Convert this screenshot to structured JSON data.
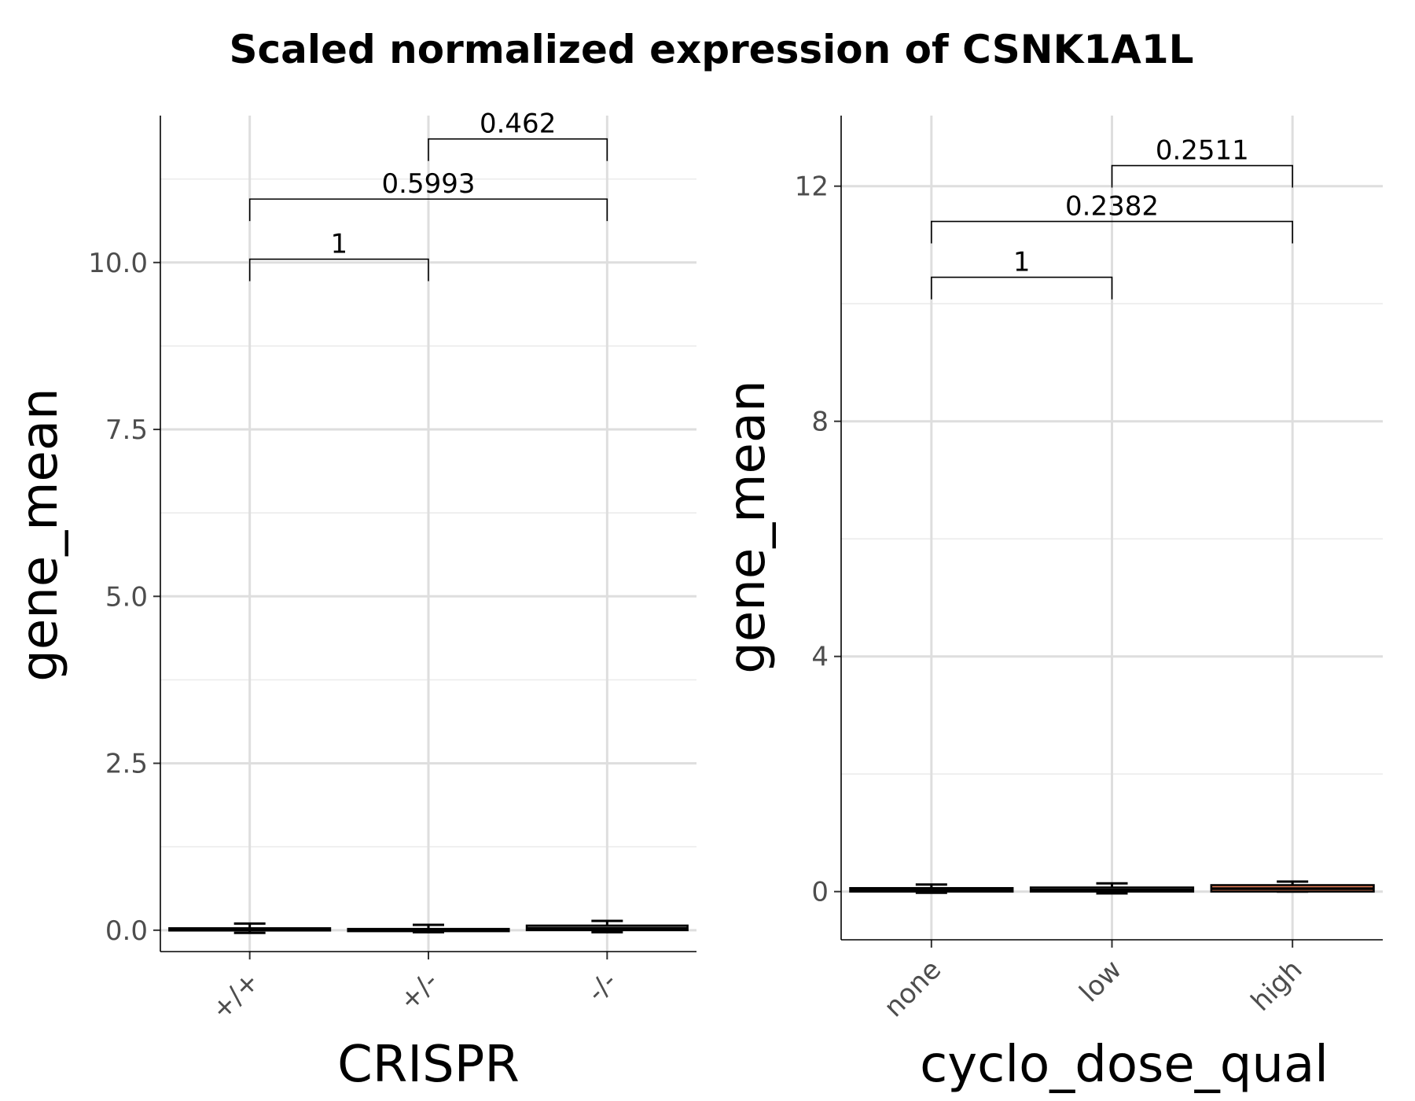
{
  "title": "Scaled normalized expression of CSNK1A1L",
  "chart_data": [
    {
      "type": "box",
      "xlabel": "CRISPR",
      "ylabel": "gene_mean",
      "categories": [
        "+/+",
        "+/-",
        "-/-"
      ],
      "ylim": [
        -0.32,
        12.2
      ],
      "yticks": [
        0,
        2.5,
        5,
        7.5,
        10
      ],
      "yticklabels": [
        "0.0",
        "2.5",
        "5.0",
        "7.5",
        "10.0"
      ],
      "grid": true,
      "boxes": [
        {
          "category": "+/+",
          "lower_whisker": -0.04,
          "q1": 0.0,
          "median": 0.01,
          "q3": 0.03,
          "upper_whisker": 0.1,
          "fill": "#ffffff"
        },
        {
          "category": "+/-",
          "lower_whisker": -0.03,
          "q1": 0.0,
          "median": 0.01,
          "q3": 0.02,
          "upper_whisker": 0.08,
          "fill": "#ffffff"
        },
        {
          "category": "-/-",
          "lower_whisker": -0.03,
          "q1": 0.0,
          "median": 0.03,
          "q3": 0.07,
          "upper_whisker": 0.14,
          "fill": "#ffffff"
        }
      ],
      "comparisons": [
        {
          "groups": [
            "+/+",
            "+/-"
          ],
          "p_value": "1",
          "y": 10.05
        },
        {
          "groups": [
            "+/+",
            "-/-"
          ],
          "p_value": "0.5993",
          "y": 10.95
        },
        {
          "groups": [
            "+/-",
            "-/-"
          ],
          "p_value": "0.462",
          "y": 11.85
        }
      ]
    },
    {
      "type": "box",
      "xlabel": "cyclo_dose_qual",
      "ylabel": "gene_mean",
      "categories": [
        "none",
        "low",
        "high"
      ],
      "ylim": [
        -0.82,
        13.2
      ],
      "yticks": [
        0,
        4,
        8,
        12
      ],
      "yticklabels": [
        "0",
        "4",
        "8",
        "12"
      ],
      "grid": true,
      "boxes": [
        {
          "category": "none",
          "lower_whisker": -0.02,
          "q1": 0.0,
          "median": 0.02,
          "q3": 0.06,
          "upper_whisker": 0.12,
          "fill": "#ffffff"
        },
        {
          "category": "low",
          "lower_whisker": -0.03,
          "q1": 0.0,
          "median": 0.03,
          "q3": 0.07,
          "upper_whisker": 0.14,
          "fill": "#ffffff"
        },
        {
          "category": "high",
          "lower_whisker": 0.0,
          "q1": 0.0,
          "median": 0.05,
          "q3": 0.11,
          "upper_whisker": 0.17,
          "fill": "#e8805a"
        }
      ],
      "comparisons": [
        {
          "groups": [
            "none",
            "low"
          ],
          "p_value": "1",
          "y": 10.45
        },
        {
          "groups": [
            "none",
            "high"
          ],
          "p_value": "0.2382",
          "y": 11.4
        },
        {
          "groups": [
            "low",
            "high"
          ],
          "p_value": "0.2511",
          "y": 12.35
        }
      ]
    }
  ]
}
